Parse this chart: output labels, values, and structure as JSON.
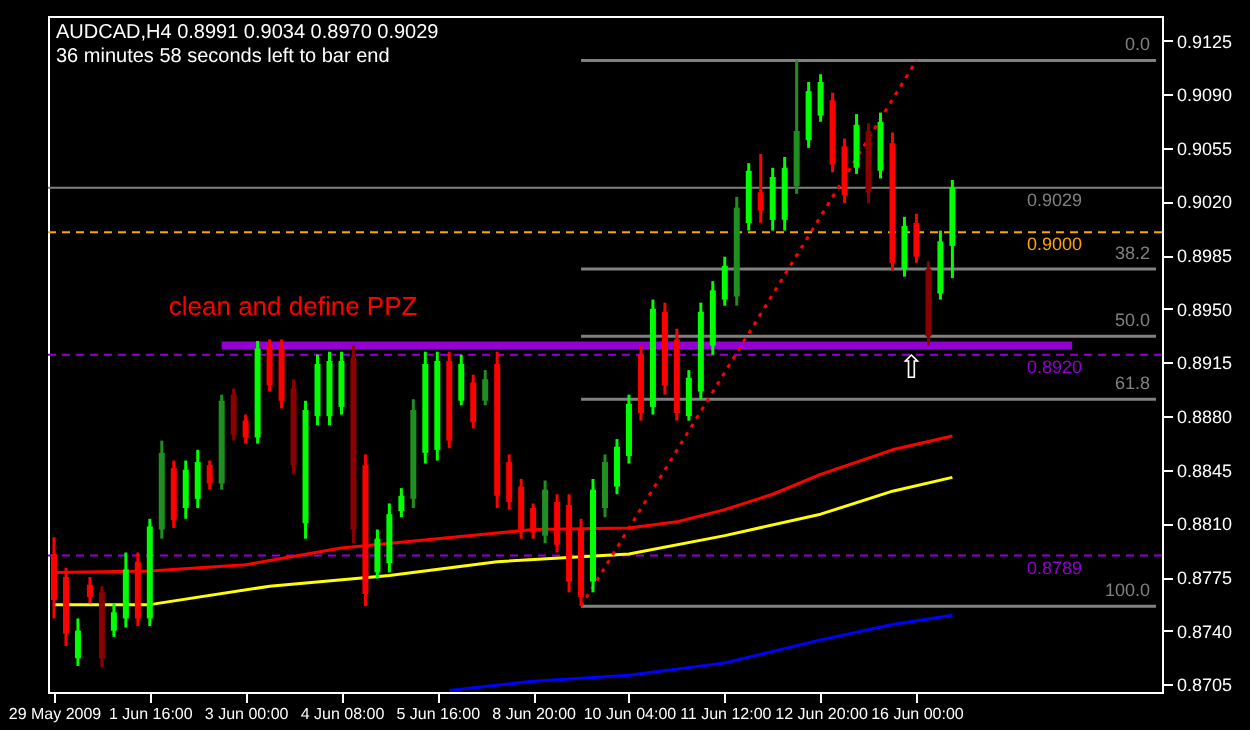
{
  "chart_data": {
    "type": "candlestick",
    "title": "AUDCAD,H4  0.8991 0.9034 0.8970 0.9029",
    "subtitle": "36 minutes 58 seconds left to bar end",
    "categories": [
      "29 May 2009",
      null,
      null,
      null,
      null,
      null,
      null,
      null,
      "1 Jun 16:00",
      null,
      null,
      null,
      null,
      null,
      null,
      null,
      "3 Jun 00:00",
      null,
      null,
      null,
      null,
      null,
      null,
      null,
      "4 Jun 08:00",
      null,
      null,
      null,
      null,
      null,
      null,
      null,
      "5 Jun 16:00",
      null,
      null,
      null,
      null,
      null,
      null,
      null,
      "8 Jun 20:00",
      null,
      null,
      null,
      null,
      null,
      null,
      null,
      "10 Jun 04:00",
      null,
      null,
      null,
      null,
      null,
      null,
      null,
      "11 Jun 12:00",
      null,
      null,
      null,
      null,
      null,
      null,
      null,
      "12 Jun 20:00",
      null,
      null,
      null,
      null,
      null,
      null,
      null,
      "16 Jun 00:00",
      null,
      null,
      null,
      null,
      null,
      null,
      null,
      null,
      null,
      null,
      null,
      null,
      null,
      null,
      null,
      null,
      null,
      null,
      null,
      null
    ],
    "ohlc": [
      [
        0.879,
        0.8801,
        0.8748,
        0.876
      ],
      [
        0.8775,
        0.8781,
        0.873,
        0.8738
      ],
      [
        0.8722,
        0.8748,
        0.8717,
        0.874
      ],
      [
        0.877,
        0.8775,
        0.8758,
        0.8762
      ],
      [
        0.8765,
        0.8769,
        0.8716,
        0.8722
      ],
      [
        0.874,
        0.8758,
        0.8736,
        0.8752
      ],
      [
        0.8748,
        0.8791,
        0.8742,
        0.878
      ],
      [
        0.8785,
        0.8791,
        0.8743,
        0.8748
      ],
      [
        0.8748,
        0.8813,
        0.8743,
        0.8808
      ],
      [
        0.8806,
        0.8864,
        0.88,
        0.8856
      ],
      [
        0.8846,
        0.8851,
        0.8807,
        0.8812
      ],
      [
        0.882,
        0.8851,
        0.8813,
        0.8845
      ],
      [
        0.8826,
        0.8858,
        0.882,
        0.885
      ],
      [
        0.8848,
        0.8851,
        0.8832,
        0.8836
      ],
      [
        0.8836,
        0.8894,
        0.8832,
        0.889
      ],
      [
        0.8894,
        0.8898,
        0.8864,
        0.8868
      ],
      [
        0.8877,
        0.8881,
        0.8862,
        0.8866
      ],
      [
        0.8866,
        0.8929,
        0.8862,
        0.8924
      ],
      [
        0.8925,
        0.893,
        0.8896,
        0.89
      ],
      [
        0.8924,
        0.893,
        0.8885,
        0.889
      ],
      [
        0.8898,
        0.8904,
        0.8842,
        0.8848
      ],
      [
        0.881,
        0.889,
        0.88,
        0.8884
      ],
      [
        0.888,
        0.892,
        0.8874,
        0.8914
      ],
      [
        0.888,
        0.8922,
        0.8874,
        0.8916
      ],
      [
        0.8886,
        0.8922,
        0.8881,
        0.8916
      ],
      [
        0.8918,
        0.8926,
        0.8797,
        0.8806
      ],
      [
        0.8848,
        0.8855,
        0.8756,
        0.8764
      ],
      [
        0.8778,
        0.8806,
        0.8774,
        0.88
      ],
      [
        0.8784,
        0.8823,
        0.8778,
        0.8816
      ],
      [
        0.8818,
        0.8833,
        0.8814,
        0.8828
      ],
      [
        0.8826,
        0.8891,
        0.882,
        0.8884
      ],
      [
        0.8856,
        0.8922,
        0.8849,
        0.8914
      ],
      [
        0.8858,
        0.8922,
        0.8851,
        0.8916
      ],
      [
        0.8916,
        0.8922,
        0.8859,
        0.8864
      ],
      [
        0.889,
        0.892,
        0.8887,
        0.8914
      ],
      [
        0.8902,
        0.8907,
        0.8872,
        0.8876
      ],
      [
        0.889,
        0.891,
        0.8887,
        0.8904
      ],
      [
        0.8914,
        0.8922,
        0.882,
        0.8828
      ],
      [
        0.885,
        0.8855,
        0.8819,
        0.8824
      ],
      [
        0.8834,
        0.8839,
        0.88,
        0.8806
      ],
      [
        0.882,
        0.8823,
        0.88,
        0.8804
      ],
      [
        0.8802,
        0.8838,
        0.8797,
        0.8832
      ],
      [
        0.8824,
        0.8829,
        0.8791,
        0.8796
      ],
      [
        0.8822,
        0.8829,
        0.8765,
        0.8772
      ],
      [
        0.8806,
        0.8813,
        0.8756,
        0.8762
      ],
      [
        0.8772,
        0.8839,
        0.8765,
        0.8832
      ],
      [
        0.882,
        0.8855,
        0.8814,
        0.885
      ],
      [
        0.8834,
        0.8865,
        0.8829,
        0.886
      ],
      [
        0.8854,
        0.8894,
        0.8849,
        0.8888
      ],
      [
        0.892,
        0.8926,
        0.8877,
        0.8882
      ],
      [
        0.8886,
        0.8956,
        0.8881,
        0.895
      ],
      [
        0.8948,
        0.8954,
        0.8894,
        0.89
      ],
      [
        0.893,
        0.8937,
        0.8877,
        0.8882
      ],
      [
        0.888,
        0.891,
        0.8877,
        0.8905
      ],
      [
        0.8896,
        0.8954,
        0.8891,
        0.8948
      ],
      [
        0.8926,
        0.8968,
        0.892,
        0.8962
      ],
      [
        0.8956,
        0.8984,
        0.8952,
        0.8978
      ],
      [
        0.8958,
        0.9023,
        0.8952,
        0.9016
      ],
      [
        0.9006,
        0.9045,
        0.9001,
        0.904
      ],
      [
        0.9026,
        0.9051,
        0.9006,
        0.9014
      ],
      [
        0.9008,
        0.9042,
        0.9001,
        0.9036
      ],
      [
        0.9008,
        0.9049,
        0.9001,
        0.9042
      ],
      [
        0.903,
        0.9112,
        0.9025,
        0.9066
      ],
      [
        0.906,
        0.9098,
        0.9055,
        0.9092
      ],
      [
        0.9076,
        0.9103,
        0.9072,
        0.9098
      ],
      [
        0.9086,
        0.9091,
        0.9039,
        0.9044
      ],
      [
        0.9056,
        0.9061,
        0.9019,
        0.9024
      ],
      [
        0.9042,
        0.9077,
        0.9038,
        0.907
      ],
      [
        0.9066,
        0.9071,
        0.9019,
        0.9026
      ],
      [
        0.904,
        0.9078,
        0.9035,
        0.9072
      ],
      [
        0.9058,
        0.9065,
        0.8975,
        0.898
      ],
      [
        0.8976,
        0.901,
        0.8971,
        0.9004
      ],
      [
        0.9006,
        0.9012,
        0.898,
        0.8984
      ],
      [
        0.8976,
        0.8981,
        0.8926,
        0.8932
      ],
      [
        0.896,
        0.9001,
        0.8956,
        0.8994
      ],
      [
        0.8991,
        0.9034,
        0.897,
        0.9029
      ],
      null,
      null,
      null,
      null,
      null,
      null,
      null,
      null,
      null,
      null,
      null,
      null,
      null,
      null,
      null,
      null,
      null
    ],
    "colors": [
      "#ff0000",
      "#ff0000",
      "#00ff00",
      "#ff0000",
      "#8b0000",
      "#00ff00",
      "#00ff00",
      "#ff0000",
      "#00ff00",
      "#1f8f1f",
      "#ff0000",
      "#00ff00",
      "#00ff00",
      "#ff0000",
      "#1f8f1f",
      "#8b0000",
      "#ff0000",
      "#00ff00",
      "#ff0000",
      "#ff0000",
      "#8b0000",
      "#00ff00",
      "#00ff00",
      "#00ff00",
      "#00ff00",
      "#8b0000",
      "#ff0000",
      "#00ff00",
      "#00ff00",
      "#00ff00",
      "#1f8f1f",
      "#00ff00",
      "#00ff00",
      "#ff0000",
      "#00ff00",
      "#ff0000",
      "#1f8f1f",
      "#ff0000",
      "#ff0000",
      "#ff0000",
      "#ff0000",
      "#1f8f1f",
      "#ff0000",
      "#ff0000",
      "#ff0000",
      "#00ff00",
      "#1f8f1f",
      "#00ff00",
      "#00ff00",
      "#ff0000",
      "#00ff00",
      "#ff0000",
      "#ff0000",
      "#00ff00",
      "#00ff00",
      "#00ff00",
      "#00ff00",
      "#1f8f1f",
      "#00ff00",
      "#ff0000",
      "#00ff00",
      "#00ff00",
      "#1f8f1f",
      "#00ff00",
      "#00ff00",
      "#ff0000",
      "#ff0000",
      "#00ff00",
      "#8b0000",
      "#00ff00",
      "#ff0000",
      "#00ff00",
      "#ff0000",
      "#8b0000",
      "#00ff00",
      "#00ff00",
      null,
      null,
      null,
      null,
      null,
      null,
      null,
      null,
      null,
      null,
      null,
      null,
      null,
      null,
      null,
      null,
      null
    ],
    "series": [
      {
        "type": "line",
        "color": "#ff0000",
        "values": [
          0.8778,
          null,
          null,
          null,
          null,
          null,
          null,
          null,
          0.8779,
          null,
          null,
          null,
          null,
          null,
          null,
          null,
          0.8783,
          null,
          null,
          null,
          null,
          null,
          null,
          null,
          0.8794,
          null,
          null,
          null,
          null,
          null,
          null,
          null,
          0.88,
          null,
          null,
          null,
          null,
          null,
          null,
          null,
          0.8806,
          null,
          null,
          null,
          null,
          null,
          null,
          null,
          0.8807,
          null,
          null,
          null,
          0.8811,
          null,
          null,
          null,
          0.8819,
          null,
          null,
          null,
          0.8829,
          null,
          null,
          null,
          0.8842,
          null,
          null,
          null,
          null,
          null,
          0.8858,
          null,
          null,
          null,
          null,
          0.8867,
          null,
          null,
          null,
          null,
          null,
          null,
          null,
          null,
          null,
          null,
          null,
          null,
          null,
          null,
          null,
          null,
          null
        ]
      },
      {
        "type": "line",
        "color": "#ffff00",
        "values": [
          0.8757,
          null,
          null,
          null,
          null,
          null,
          null,
          null,
          0.8757,
          null,
          null,
          null,
          null,
          null,
          null,
          null,
          null,
          null,
          0.8769,
          null,
          null,
          null,
          null,
          null,
          null,
          null,
          null,
          null,
          0.8776,
          null,
          null,
          null,
          null,
          null,
          null,
          null,
          null,
          0.8785,
          null,
          null,
          null,
          null,
          null,
          null,
          null,
          null,
          null,
          null,
          0.879,
          null,
          null,
          null,
          null,
          null,
          null,
          null,
          0.8802,
          null,
          null,
          null,
          null,
          null,
          null,
          null,
          0.8816,
          null,
          null,
          null,
          null,
          null,
          0.8831,
          null,
          null,
          null,
          null,
          0.884,
          null,
          null,
          null,
          null,
          null,
          null,
          null,
          null,
          null,
          null,
          null,
          null,
          null,
          null,
          null,
          null,
          null
        ]
      },
      {
        "type": "line",
        "color": "#0000ff",
        "values": [
          null,
          null,
          null,
          null,
          null,
          null,
          null,
          null,
          null,
          null,
          null,
          null,
          null,
          null,
          null,
          null,
          null,
          null,
          null,
          null,
          null,
          null,
          null,
          null,
          null,
          null,
          null,
          null,
          null,
          null,
          null,
          null,
          null,
          0.8701,
          null,
          null,
          null,
          null,
          null,
          null,
          0.8707,
          null,
          null,
          null,
          null,
          null,
          null,
          null,
          0.8711,
          null,
          null,
          null,
          null,
          null,
          null,
          null,
          0.8719,
          null,
          null,
          null,
          null,
          null,
          null,
          null,
          0.8734,
          null,
          null,
          null,
          null,
          null,
          0.8744,
          null,
          null,
          null,
          null,
          0.875,
          null,
          null,
          null,
          null,
          null,
          null,
          null,
          null,
          null,
          null,
          null,
          null,
          null,
          null,
          null,
          null,
          null
        ]
      },
      {
        "type": "line",
        "name": "0.0",
        "color": "#808080",
        "values": [
          null,
          null,
          null,
          null,
          null,
          null,
          null,
          null,
          null,
          null,
          null,
          null,
          null,
          null,
          null,
          null,
          null,
          null,
          null,
          null,
          null,
          null,
          null,
          null,
          null,
          null,
          null,
          null,
          null,
          null,
          null,
          null,
          null,
          null,
          null,
          null,
          null,
          null,
          null,
          null,
          null,
          null,
          null,
          null,
          0.9112,
          null,
          null,
          null,
          null,
          null,
          null,
          null,
          null,
          null,
          null,
          null,
          null,
          null,
          null,
          null,
          null,
          null,
          null,
          null,
          null,
          null,
          null,
          null,
          null,
          null,
          null,
          null,
          null,
          null,
          null,
          null,
          null,
          null,
          null,
          null,
          null,
          null,
          null,
          null,
          null,
          null,
          null,
          null,
          null,
          null,
          null,
          null,
          0.9112
        ]
      },
      {
        "type": "line",
        "name": "38.2",
        "color": "#808080",
        "values": [
          null,
          null,
          null,
          null,
          null,
          null,
          null,
          null,
          null,
          null,
          null,
          null,
          null,
          null,
          null,
          null,
          null,
          null,
          null,
          null,
          null,
          null,
          null,
          null,
          null,
          null,
          null,
          null,
          null,
          null,
          null,
          null,
          null,
          null,
          null,
          null,
          null,
          null,
          null,
          null,
          null,
          null,
          null,
          null,
          0.8976,
          null,
          null,
          null,
          null,
          null,
          null,
          null,
          null,
          null,
          null,
          null,
          null,
          null,
          null,
          null,
          null,
          null,
          null,
          null,
          null,
          null,
          null,
          null,
          null,
          null,
          null,
          null,
          null,
          null,
          null,
          null,
          null,
          null,
          null,
          null,
          null,
          null,
          null,
          null,
          null,
          null,
          null,
          null,
          null,
          null,
          null,
          null,
          0.8976
        ]
      },
      {
        "type": "line",
        "name": "50.0",
        "color": "#808080",
        "values": [
          null,
          null,
          null,
          null,
          null,
          null,
          null,
          null,
          null,
          null,
          null,
          null,
          null,
          null,
          null,
          null,
          null,
          null,
          null,
          null,
          null,
          null,
          null,
          null,
          null,
          null,
          null,
          null,
          null,
          null,
          null,
          null,
          null,
          null,
          null,
          null,
          null,
          null,
          null,
          null,
          null,
          null,
          null,
          null,
          0.8932,
          null,
          null,
          null,
          null,
          null,
          null,
          null,
          null,
          null,
          null,
          null,
          null,
          null,
          null,
          null,
          null,
          null,
          null,
          null,
          null,
          null,
          null,
          null,
          null,
          null,
          null,
          null,
          null,
          null,
          null,
          null,
          null,
          null,
          null,
          null,
          null,
          null,
          null,
          null,
          null,
          null,
          null,
          null,
          null,
          null,
          null,
          null,
          0.8932
        ]
      },
      {
        "type": "line",
        "name": "61.8",
        "color": "#808080",
        "values": [
          null,
          null,
          null,
          null,
          null,
          null,
          null,
          null,
          null,
          null,
          null,
          null,
          null,
          null,
          null,
          null,
          null,
          null,
          null,
          null,
          null,
          null,
          null,
          null,
          null,
          null,
          null,
          null,
          null,
          null,
          null,
          null,
          null,
          null,
          null,
          null,
          null,
          null,
          null,
          null,
          null,
          null,
          null,
          null,
          0.8891,
          null,
          null,
          null,
          null,
          null,
          null,
          null,
          null,
          null,
          null,
          null,
          null,
          null,
          null,
          null,
          null,
          null,
          null,
          null,
          null,
          null,
          null,
          null,
          null,
          null,
          null,
          null,
          null,
          null,
          null,
          null,
          null,
          null,
          null,
          null,
          null,
          null,
          null,
          null,
          null,
          null,
          null,
          null,
          null,
          null,
          null,
          null,
          0.8891
        ]
      },
      {
        "type": "line",
        "name": "100.0",
        "color": "#808080",
        "values": [
          null,
          null,
          null,
          null,
          null,
          null,
          null,
          null,
          null,
          null,
          null,
          null,
          null,
          null,
          null,
          null,
          null,
          null,
          null,
          null,
          null,
          null,
          null,
          null,
          null,
          null,
          null,
          null,
          null,
          null,
          null,
          null,
          null,
          null,
          null,
          null,
          null,
          null,
          null,
          null,
          null,
          null,
          null,
          null,
          0.8756,
          null,
          null,
          null,
          null,
          null,
          null,
          null,
          null,
          null,
          null,
          null,
          null,
          null,
          null,
          null,
          null,
          null,
          null,
          null,
          null,
          null,
          null,
          null,
          null,
          null,
          null,
          null,
          null,
          null,
          null,
          null,
          null,
          null,
          null,
          null,
          null,
          null,
          null,
          null,
          null,
          null,
          null,
          null,
          null,
          null,
          null,
          null,
          0.8756
        ]
      },
      {
        "type": "line",
        "color": "#9400d3",
        "values": [
          null,
          null,
          null,
          null,
          null,
          null,
          null,
          null,
          null,
          null,
          null,
          null,
          null,
          null,
          0.8926,
          null,
          null,
          null,
          null,
          null,
          null,
          null,
          null,
          null,
          null,
          null,
          null,
          null,
          null,
          null,
          null,
          null,
          null,
          null,
          null,
          null,
          null,
          null,
          null,
          null,
          null,
          null,
          null,
          null,
          null,
          null,
          null,
          null,
          null,
          null,
          null,
          null,
          null,
          null,
          null,
          null,
          null,
          null,
          null,
          null,
          null,
          null,
          null,
          null,
          null,
          null,
          null,
          null,
          null,
          null,
          null,
          null,
          null,
          null,
          null,
          null,
          null,
          null,
          null,
          null,
          null,
          null,
          null,
          null,
          null,
          0.8926,
          null,
          null,
          null,
          null,
          null,
          null,
          null
        ]
      },
      {
        "type": "line",
        "color": "#ff0000",
        "line_style": "dotted",
        "values": [
          null,
          null,
          null,
          null,
          null,
          null,
          null,
          null,
          null,
          null,
          null,
          null,
          null,
          null,
          null,
          null,
          null,
          null,
          null,
          null,
          null,
          null,
          null,
          null,
          null,
          null,
          null,
          null,
          null,
          null,
          null,
          null,
          null,
          null,
          null,
          null,
          null,
          null,
          null,
          null,
          null,
          null,
          null,
          null,
          0.8756,
          null,
          null,
          null,
          null,
          null,
          null,
          null,
          null,
          null,
          null,
          null,
          null,
          null,
          null,
          null,
          null,
          null,
          null,
          null,
          null,
          null,
          null,
          null,
          null,
          null,
          null,
          null,
          0.9112,
          null,
          null,
          null,
          null,
          null,
          null,
          null,
          null,
          null,
          null,
          null,
          null,
          null,
          null,
          null,
          null,
          null,
          null,
          null,
          null
        ]
      }
    ],
    "ref_lines": [
      {
        "axis": "y",
        "value": 0.9029,
        "label": "0.9029",
        "color": "#808080",
        "line_style": "solid"
      },
      {
        "axis": "y",
        "value": 0.9,
        "label": "0.9000",
        "color": "#ffa500",
        "line_style": "dashed"
      },
      {
        "axis": "y",
        "value": 0.892,
        "label": "0.8920",
        "color": "#9400d3",
        "line_style": "dashed"
      },
      {
        "axis": "y",
        "value": 0.8789,
        "label": "0.8789",
        "color": "#9400d3",
        "line_style": "dashed"
      }
    ],
    "annotations": [
      "clean and define PPZ",
      "⇧"
    ],
    "ylim": [
      0.87,
      0.9141
    ],
    "yticks": [
      {
        "value": 0.9125,
        "label": "0.9125"
      },
      {
        "value": 0.909,
        "label": "0.9090"
      },
      {
        "value": 0.9055,
        "label": "0.9055"
      },
      {
        "value": 0.902,
        "label": "0.9020"
      },
      {
        "value": 0.8985,
        "label": "0.8985"
      },
      {
        "value": 0.895,
        "label": "0.8950"
      },
      {
        "value": 0.8915,
        "label": "0.8915"
      },
      {
        "value": 0.888,
        "label": "0.8880"
      },
      {
        "value": 0.8845,
        "label": "0.8845"
      },
      {
        "value": 0.881,
        "label": "0.8810"
      },
      {
        "value": 0.8775,
        "label": "0.8775"
      },
      {
        "value": 0.874,
        "label": "0.8740"
      },
      {
        "value": 0.8705,
        "label": "0.8705"
      }
    ],
    "grid": false
  }
}
